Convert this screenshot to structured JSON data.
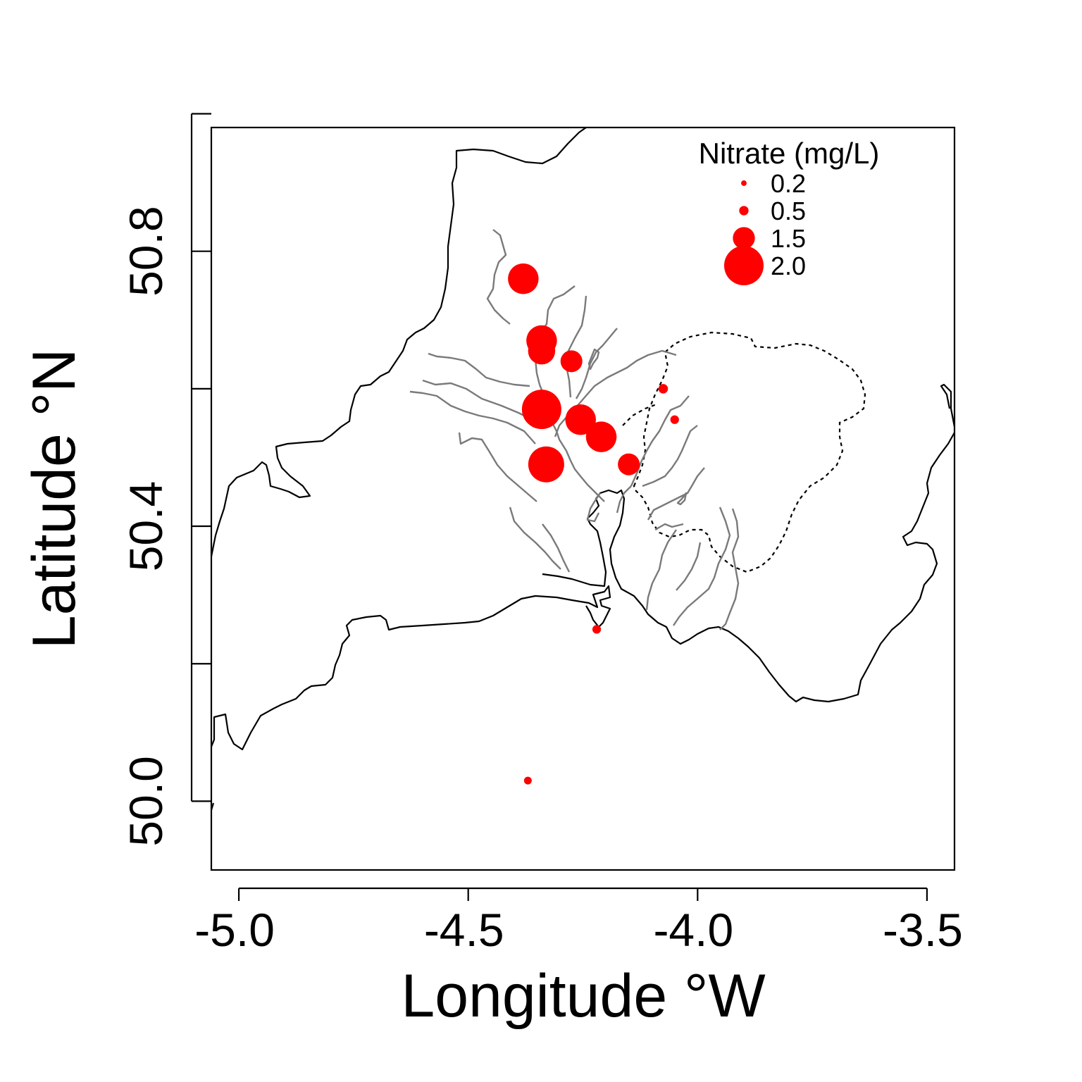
{
  "chart_data": {
    "type": "scatter",
    "xlabel": "Longitude °W",
    "ylabel": "Latitude °N",
    "xlim": [
      -5.06,
      -3.44
    ],
    "ylim": [
      49.9,
      50.98
    ],
    "x_ticks": [
      -5.0,
      -4.5,
      -4.0,
      -3.5
    ],
    "x_tick_labels": [
      "-5.0",
      "-4.5",
      "-4.0",
      "-3.5"
    ],
    "y_ticks": [
      50.0,
      50.2,
      50.4,
      50.6,
      50.8,
      51.0
    ],
    "y_tick_labels": [
      "50.0",
      "",
      "50.4",
      "",
      "50.8",
      ""
    ],
    "legend": {
      "title": "Nitrate (mg/L)",
      "position": "top-right",
      "entries": [
        {
          "label": "0.2",
          "value": 0.2
        },
        {
          "label": "0.5",
          "value": 0.5
        },
        {
          "label": "1.5",
          "value": 1.5
        },
        {
          "label": "2.0",
          "value": 2.0
        }
      ]
    },
    "marker_color": "#ff0000",
    "series": [
      {
        "points": [
          {
            "lon": -4.38,
            "lat": 50.76,
            "nitrate": 1.5
          },
          {
            "lon": -4.34,
            "lat": 50.67,
            "nitrate": 1.5
          },
          {
            "lon": -4.34,
            "lat": 50.655,
            "nitrate": 1.3
          },
          {
            "lon": -4.275,
            "lat": 50.64,
            "nitrate": 1.0
          },
          {
            "lon": -4.34,
            "lat": 50.57,
            "nitrate": 2.0
          },
          {
            "lon": -4.255,
            "lat": 50.555,
            "nitrate": 1.5
          },
          {
            "lon": -4.21,
            "lat": 50.53,
            "nitrate": 1.5
          },
          {
            "lon": -4.33,
            "lat": 50.49,
            "nitrate": 1.8
          },
          {
            "lon": -4.15,
            "lat": 50.49,
            "nitrate": 1.0
          },
          {
            "lon": -4.075,
            "lat": 50.6,
            "nitrate": 0.3
          },
          {
            "lon": -4.05,
            "lat": 50.555,
            "nitrate": 0.25
          },
          {
            "lon": -4.22,
            "lat": 50.25,
            "nitrate": 0.25
          },
          {
            "lon": -4.37,
            "lat": 50.03,
            "nitrate": 0.2
          }
        ]
      }
    ]
  },
  "map_layers": {
    "coastline_color": "#000000",
    "river_color": "#7a7a7a",
    "catchment_boundary_style": "dashed"
  }
}
